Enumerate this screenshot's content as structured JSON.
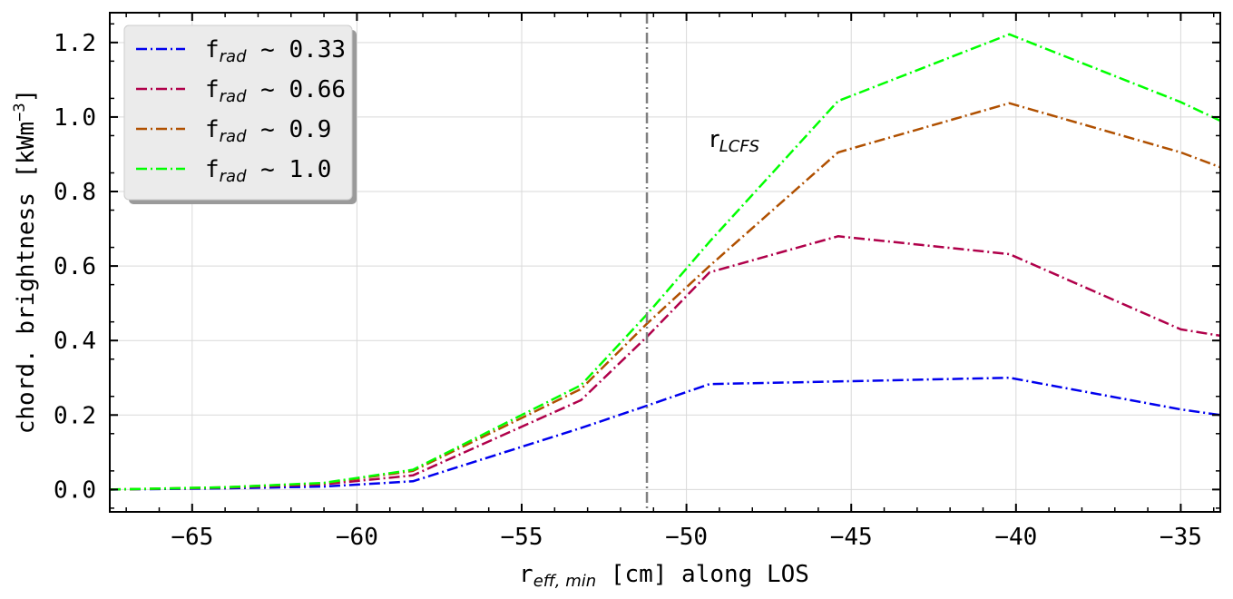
{
  "chart_data": {
    "type": "line",
    "xlabel_main": "r",
    "xlabel_sub": "eff, min",
    "xlabel_rest": " [cm] along LOS",
    "ylabel_main": "chord. brightness [kWm",
    "ylabel_sup": "−3",
    "ylabel_end": "]",
    "xlim": [
      -67.5,
      -33.8
    ],
    "ylim": [
      -0.06,
      1.28
    ],
    "x_ticks": [
      -65,
      -60,
      -55,
      -50,
      -45,
      -40,
      -35
    ],
    "x_tick_labels": [
      "−65",
      "−60",
      "−55",
      "−50",
      "−45",
      "−40",
      "−35"
    ],
    "y_ticks": [
      0.0,
      0.2,
      0.4,
      0.6,
      0.8,
      1.0,
      1.2
    ],
    "y_tick_labels": [
      "0.0",
      "0.2",
      "0.4",
      "0.6",
      "0.8",
      "1.0",
      "1.2"
    ],
    "grid": true,
    "legend_position": "top-left",
    "x": [
      -67.5,
      -64.0,
      -61.0,
      -58.3,
      -53.2,
      -51.2,
      -49.3,
      -45.4,
      -40.2,
      -35.0,
      -33.8
    ],
    "series": [
      {
        "name_main": "f",
        "name_sub": "rad",
        "name_rest": " ~ 0.33",
        "color": "#0000ee",
        "values": [
          0.0,
          0.003,
          0.008,
          0.022,
          0.165,
          0.225,
          0.283,
          0.29,
          0.3,
          0.215,
          0.2
        ]
      },
      {
        "name_main": "f",
        "name_sub": "rad",
        "name_rest": " ~ 0.66",
        "color": "#b0004a",
        "values": [
          0.0,
          0.005,
          0.014,
          0.038,
          0.24,
          0.41,
          0.583,
          0.68,
          0.632,
          0.43,
          0.413
        ]
      },
      {
        "name_main": "f",
        "name_sub": "rad",
        "name_rest": " ~ 0.9",
        "color": "#b05000",
        "values": [
          0.0,
          0.006,
          0.017,
          0.05,
          0.27,
          0.445,
          0.6,
          0.905,
          1.037,
          0.905,
          0.865
        ]
      },
      {
        "name_main": "f",
        "name_sub": "rad",
        "name_rest": " ~ 1.0",
        "color": "#00ff00",
        "values": [
          0.0,
          0.006,
          0.018,
          0.053,
          0.28,
          0.47,
          0.665,
          1.043,
          1.222,
          1.04,
          0.99
        ]
      }
    ],
    "vline_x": -51.2,
    "vline_color": "#808080",
    "annotation_main": "r",
    "annotation_sub": "LCFS",
    "annotation_x": -49.3,
    "annotation_y": 0.92
  }
}
